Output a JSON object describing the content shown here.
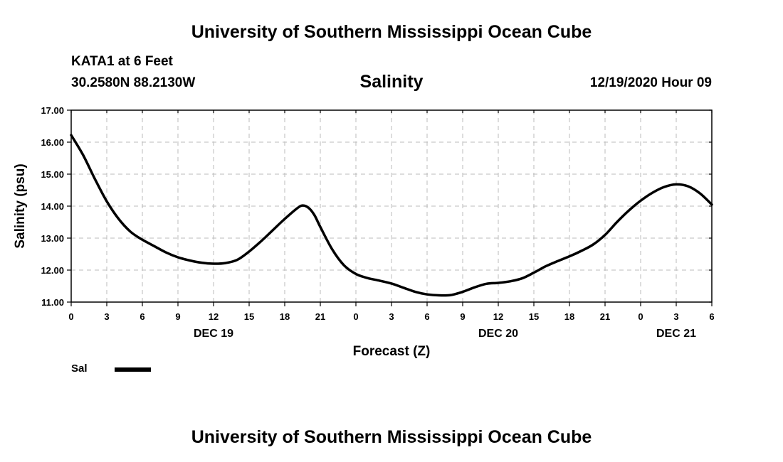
{
  "header": {
    "top_title": "University of Southern Mississippi Ocean Cube",
    "station": "KATA1 at 6 Feet",
    "coords": "30.2580N 88.2130W",
    "datetime": "12/19/2020 Hour 09"
  },
  "footer": {
    "bottom_title": "University of Southern Mississippi Ocean Cube"
  },
  "legend": {
    "label": "Sal",
    "color": "#000000"
  },
  "chart_data": {
    "type": "line",
    "title": "Salinity",
    "xlabel": "Forecast (Z)",
    "ylabel": "Salinity (psu)",
    "xlim": [
      0,
      54
    ],
    "ylim": [
      11.0,
      17.0
    ],
    "x_tick_labels": [
      "0",
      "3",
      "6",
      "9",
      "12",
      "15",
      "18",
      "21",
      "0",
      "3",
      "6",
      "9",
      "12",
      "15",
      "18",
      "21",
      "0",
      "3",
      "6"
    ],
    "y_tick_labels": [
      "11.00",
      "12.00",
      "13.00",
      "14.00",
      "15.00",
      "16.00",
      "17.00"
    ],
    "day_labels": [
      {
        "label": "DEC 19",
        "x": 12
      },
      {
        "label": "DEC 20",
        "x": 36
      },
      {
        "label": "DEC 21",
        "x": 51
      }
    ],
    "grid": true,
    "series": [
      {
        "name": "Sal",
        "color": "#000000",
        "x": [
          0,
          1,
          2,
          3,
          4,
          5,
          6,
          7,
          8,
          9,
          10,
          11,
          12,
          13,
          14,
          15,
          16,
          17,
          18,
          19,
          19.5,
          20,
          20.5,
          21,
          22,
          23,
          24,
          25,
          26,
          27,
          28,
          29,
          30,
          31,
          32,
          33,
          34,
          35,
          36,
          37,
          38,
          39,
          40,
          41,
          42,
          43,
          44,
          45,
          46,
          47,
          48,
          49,
          50,
          51,
          52,
          53,
          54
        ],
        "values": [
          16.22,
          15.6,
          14.85,
          14.15,
          13.6,
          13.2,
          12.95,
          12.75,
          12.55,
          12.4,
          12.3,
          12.23,
          12.2,
          12.22,
          12.32,
          12.58,
          12.9,
          13.25,
          13.6,
          13.92,
          14.02,
          13.95,
          13.72,
          13.35,
          12.65,
          12.15,
          11.88,
          11.75,
          11.67,
          11.58,
          11.45,
          11.32,
          11.24,
          11.21,
          11.22,
          11.32,
          11.46,
          11.57,
          11.6,
          11.65,
          11.74,
          11.92,
          12.12,
          12.28,
          12.43,
          12.6,
          12.8,
          13.1,
          13.5,
          13.86,
          14.17,
          14.42,
          14.6,
          14.68,
          14.62,
          14.4,
          14.05
        ]
      }
    ]
  }
}
